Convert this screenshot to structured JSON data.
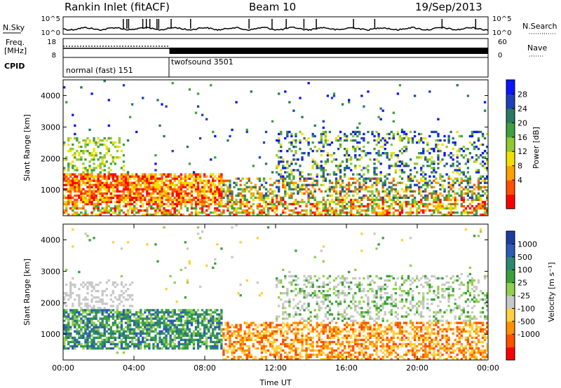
{
  "header": {
    "station": "Rankin Inlet (fitACF)",
    "beam": "Beam 10",
    "date": "19/Sep/2013"
  },
  "noise_panel": {
    "left_label": "N.Sky",
    "right_label": "N.Search",
    "left_ticks": [
      "10^5",
      "10^0"
    ],
    "right_ticks": [
      "10^5",
      "10^0"
    ]
  },
  "freq_panel": {
    "left_label_1": "Freq.",
    "left_label_2": "[MHz]",
    "left_ticks": [
      "18",
      "8"
    ],
    "right_label": "Nave",
    "right_ticks": [
      "60",
      "0"
    ]
  },
  "cpid_panel": {
    "label": "CPID",
    "segments": [
      {
        "name": "normal (fast) 151",
        "start_hour": 0,
        "end_hour": 6
      },
      {
        "name": "twofsound 3501",
        "start_hour": 6,
        "end_hour": 24
      }
    ]
  },
  "chart_data": [
    {
      "type": "heatmap",
      "parameter": "Power",
      "ylabel": "Slant Range [km]",
      "xlabel": "",
      "ylim": [
        180,
        4500
      ],
      "xlim": [
        0,
        24
      ],
      "y_ticks": [
        "1000",
        "2000",
        "3000",
        "4000"
      ],
      "colorbar": {
        "label": "Power [dB]",
        "ticks": [
          "28",
          "24",
          "20",
          "16",
          "12",
          "8",
          "4"
        ],
        "colors": [
          "#0a14ff",
          "#2040b8",
          "#287a60",
          "#40a040",
          "#90c830",
          "#f0e000",
          "#ffa000",
          "#ff5000",
          "#ff0000"
        ]
      }
    },
    {
      "type": "heatmap",
      "parameter": "Velocity",
      "ylabel": "Slant Range [km]",
      "xlabel": "Time UT",
      "ylim": [
        180,
        4500
      ],
      "xlim": [
        0,
        24
      ],
      "y_ticks": [
        "1000",
        "2000",
        "3000",
        "4000"
      ],
      "x_ticks": [
        "00:00",
        "04:00",
        "08:00",
        "12:00",
        "16:00",
        "20:00",
        "00:00"
      ],
      "colorbar": {
        "label": "Velocity [m s⁻¹]",
        "ticks": [
          "1000",
          "500",
          "100",
          "25",
          "-25",
          "-100",
          "-500",
          "-1000"
        ],
        "colors": [
          "#1e3ca0",
          "#2d5ab4",
          "#2a8a6e",
          "#3aa03a",
          "#90d050",
          "#c8c8c8",
          "#ffd040",
          "#ff9000",
          "#ff5000",
          "#ff0000"
        ]
      }
    }
  ]
}
